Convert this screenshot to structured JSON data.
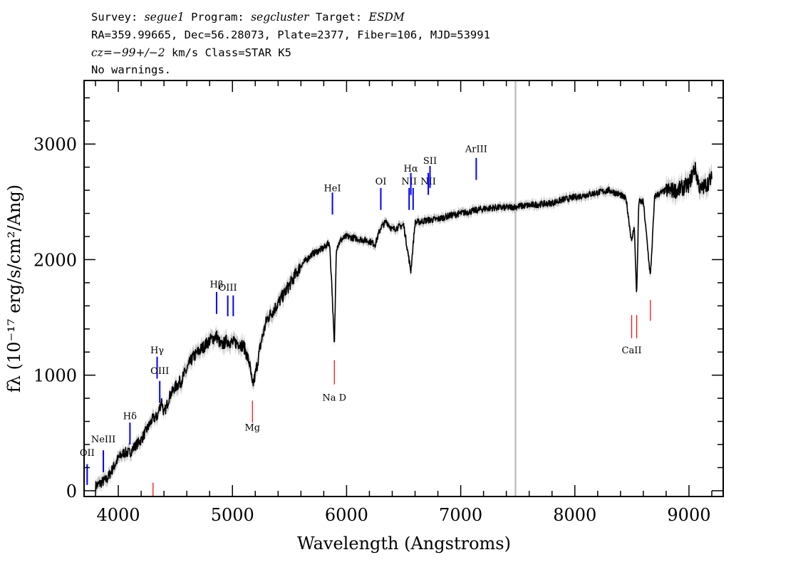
{
  "header": {
    "line1": {
      "survey_label": "Survey: ",
      "survey": "segue1",
      "program_label": " Program: ",
      "program": "segcluster",
      "target_label": " Target: ",
      "target": "ESDM"
    },
    "line2": "RA=359.99665, Dec=56.28073, Plate=2377, Fiber=106, MJD=53991",
    "line3": {
      "cz": "cz=−99+/−2",
      "rest": " km/s Class=STAR K5"
    },
    "line4": "No warnings."
  },
  "chart_data": {
    "type": "line",
    "title": "Survey: segue1 Program: segcluster Target: ESDM",
    "xlabel": "Wavelength (Angstroms)",
    "ylabel": "fλ (10⁻¹⁷ erg/s/cm²/Ang)",
    "xlim": [
      3700,
      9300
    ],
    "ylim": [
      -50,
      3550
    ],
    "x_ticks": [
      4000,
      5000,
      6000,
      7000,
      8000,
      9000
    ],
    "y_ticks": [
      0,
      1000,
      2000,
      3000
    ],
    "x_tick_labels": [
      "4000",
      "5000",
      "6000",
      "7000",
      "8000",
      "9000"
    ],
    "y_tick_labels": [
      "0",
      "1000",
      "2000",
      "3000"
    ],
    "grid": false,
    "vertical_marker_x": 7480,
    "series": [
      {
        "name": "spectrum",
        "color": "#000000",
        "error_band_color": "#c0c0c0",
        "x": [
          3800,
          3900,
          4000,
          4050,
          4100,
          4150,
          4200,
          4250,
          4300,
          4340,
          4380,
          4400,
          4450,
          4500,
          4550,
          4600,
          4650,
          4700,
          4750,
          4800,
          4861,
          4900,
          4950,
          5000,
          5050,
          5100,
          5150,
          5175,
          5200,
          5250,
          5300,
          5400,
          5500,
          5600,
          5700,
          5800,
          5850,
          5870,
          5893,
          5910,
          5950,
          6000,
          6100,
          6200,
          6250,
          6300,
          6350,
          6400,
          6500,
          6563,
          6600,
          6700,
          6800,
          6900,
          7000,
          7100,
          7200,
          7300,
          7400,
          7500,
          7600,
          7700,
          7800,
          7900,
          8000,
          8100,
          8200,
          8300,
          8400,
          8450,
          8498,
          8520,
          8542,
          8560,
          8600,
          8662,
          8700,
          8800,
          8900,
          9000,
          9050,
          9100,
          9150,
          9200
        ],
        "y": [
          40,
          100,
          280,
          330,
          330,
          390,
          440,
          530,
          620,
          640,
          780,
          660,
          820,
          900,
          950,
          1050,
          1150,
          1200,
          1250,
          1300,
          1340,
          1250,
          1300,
          1280,
          1280,
          1250,
          1100,
          900,
          1000,
          1280,
          1480,
          1620,
          1780,
          1950,
          2050,
          2100,
          2150,
          1800,
          1230,
          2100,
          2170,
          2200,
          2180,
          2160,
          2130,
          2280,
          2330,
          2260,
          2300,
          1900,
          2320,
          2340,
          2350,
          2380,
          2400,
          2420,
          2440,
          2450,
          2450,
          2460,
          2470,
          2480,
          2490,
          2520,
          2540,
          2560,
          2580,
          2600,
          2560,
          2520,
          2150,
          2300,
          1680,
          2500,
          2500,
          1850,
          2550,
          2600,
          2600,
          2650,
          2800,
          2600,
          2650,
          2700
        ]
      }
    ],
    "line_labels": [
      {
        "label": "OII",
        "x": 3727,
        "y_label": 300,
        "y_bot": 50,
        "y_top": 230,
        "color": "#0000ff"
      },
      {
        "label": "NeIII",
        "x": 3869,
        "y_label": 420,
        "y_bot": 160,
        "y_top": 350,
        "color": "#0000ff"
      },
      {
        "label": "Hδ",
        "x": 4102,
        "y_label": 620,
        "y_bot": 400,
        "y_top": 590,
        "color": "#0000ff"
      },
      {
        "label": "Hγ",
        "x": 4340,
        "y_label": 1190,
        "y_bot": 970,
        "y_top": 1160,
        "color": "#0000ff"
      },
      {
        "label": "OIII",
        "x": 4363,
        "y_label": 1010,
        "y_bot": 760,
        "y_top": 950,
        "color": "#0000ff"
      },
      {
        "label": "Hβ",
        "x": 4861,
        "y_label": 1760,
        "y_bot": 1530,
        "y_top": 1720,
        "color": "#0000ff"
      },
      {
        "label": "OIII",
        "x": 4959,
        "y_label": 1730,
        "y_bot": 1510,
        "y_top": 1690,
        "color": "#0000ff"
      },
      {
        "label": "",
        "x": 5007,
        "y_label": 0,
        "y_bot": 1510,
        "y_top": 1690,
        "color": "#0000ff"
      },
      {
        "label": "HeI",
        "x": 5876,
        "y_label": 2590,
        "y_bot": 2390,
        "y_top": 2580,
        "color": "#0000ff"
      },
      {
        "label": "OI",
        "x": 6300,
        "y_label": 2650,
        "y_bot": 2430,
        "y_top": 2620,
        "color": "#0000ff"
      },
      {
        "label": "NII",
        "x": 6548,
        "y_label": 2650,
        "y_bot": 2430,
        "y_top": 2620,
        "color": "#0000ff"
      },
      {
        "label": "Hα",
        "x": 6563,
        "y_label": 2760,
        "y_bot": 2560,
        "y_top": 2750,
        "color": "#0000ff"
      },
      {
        "label": "",
        "x": 6583,
        "y_label": 0,
        "y_bot": 2430,
        "y_top": 2620,
        "color": "#0000ff"
      },
      {
        "label": "NII",
        "x": 6716,
        "y_label": 2650,
        "y_bot": 2560,
        "y_top": 2750,
        "color": "#0000ff"
      },
      {
        "label": "SII",
        "x": 6731,
        "y_label": 2830,
        "y_bot": 2620,
        "y_top": 2810,
        "color": "#0000ff"
      },
      {
        "label": "ArIII",
        "x": 7136,
        "y_label": 2930,
        "y_bot": 2690,
        "y_top": 2880,
        "color": "#0000ff"
      },
      {
        "label": "",
        "x": 4304,
        "y_label": 0,
        "y_bot": -50,
        "y_top": 70,
        "color": "#ff0000"
      },
      {
        "label": "Mg",
        "x": 5175,
        "y_label": 520,
        "y_bot": 590,
        "y_top": 780,
        "color": "#ff0000"
      },
      {
        "label": "Na D",
        "x": 5893,
        "y_label": 780,
        "y_bot": 920,
        "y_top": 1130,
        "color": "#ff0000"
      },
      {
        "label": "CaII",
        "x": 8498,
        "y_label": 1190,
        "y_bot": 1320,
        "y_top": 1520,
        "color": "#ff0000"
      },
      {
        "label": "",
        "x": 8542,
        "y_label": 0,
        "y_bot": 1320,
        "y_top": 1520,
        "color": "#ff0000"
      },
      {
        "label": "",
        "x": 8662,
        "y_label": 0,
        "y_bot": 1470,
        "y_top": 1650,
        "color": "#ff0000"
      }
    ]
  }
}
